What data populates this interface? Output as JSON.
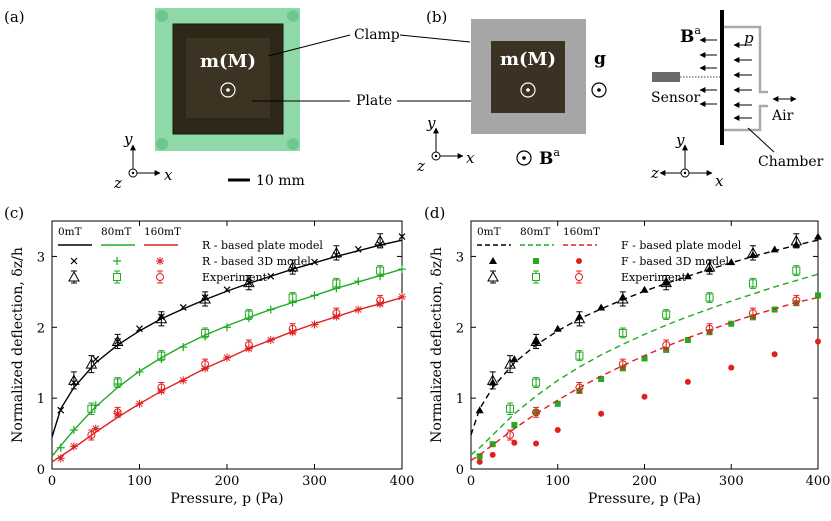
{
  "panels": {
    "a": "(a)",
    "b": "(b)",
    "c": "(c)",
    "d": "(d)"
  },
  "top": {
    "magnet_label": "m(M)",
    "clamp_label": "Clamp",
    "plate_label": "Plate",
    "gravity_label": "g",
    "field_label": "B",
    "field_sup": "a",
    "scalebar": "10 mm",
    "axis_x": "x",
    "axis_y": "y",
    "axis_z": "z",
    "sensor_label": "Sensor",
    "air_label": "Air",
    "chamber_label": "Chamber",
    "pressure_symbol": "p",
    "colors": {
      "clamp_green": "#8fd8a8",
      "plate_dark": "#3b3224",
      "clamp_gray": "#a6a6a6",
      "sensor_gray": "#6b6b6b"
    }
  },
  "chart_data": [
    {
      "type": "line",
      "panel": "c",
      "xlabel": "Pressure, p (Pa)",
      "ylabel": "Normalized deflection, δz/h",
      "xlim": [
        0,
        400
      ],
      "ylim": [
        0,
        3.5
      ],
      "xticks": [
        "0",
        "100",
        "200",
        "300",
        "400"
      ],
      "yticks": [
        "0",
        "1",
        "2",
        "3"
      ],
      "legend": {
        "headers": [
          "0mT",
          "80mT",
          "160mT"
        ],
        "rows": [
          {
            "label": "R - based plate model",
            "style": "solid"
          },
          {
            "label": "R - based 3D model",
            "style": "markers"
          },
          {
            "label": "Experiment",
            "style": "errorbars"
          }
        ]
      },
      "series": [
        {
          "name": "0mT",
          "color": "#000000",
          "model_x": [
            0,
            10,
            25,
            50,
            75,
            100,
            125,
            150,
            175,
            200,
            225,
            250,
            275,
            300,
            325,
            350,
            375,
            400
          ],
          "model_y": [
            0.45,
            0.85,
            1.15,
            1.5,
            1.75,
            1.95,
            2.12,
            2.26,
            2.39,
            2.51,
            2.62,
            2.72,
            2.82,
            2.91,
            3.0,
            3.08,
            3.16,
            3.23
          ],
          "d3_x": [
            10,
            25,
            50,
            75,
            100,
            125,
            150,
            175,
            200,
            225,
            250,
            275,
            300,
            325,
            350,
            375,
            400
          ],
          "d3_y": [
            0.83,
            1.22,
            1.55,
            1.8,
            1.98,
            2.15,
            2.28,
            2.42,
            2.53,
            2.63,
            2.72,
            2.82,
            2.92,
            3.02,
            3.1,
            3.17,
            3.28
          ],
          "exp_x": [
            25,
            45,
            75,
            125,
            175,
            225,
            275,
            325,
            375
          ],
          "exp_y": [
            1.25,
            1.48,
            1.8,
            2.12,
            2.4,
            2.63,
            2.85,
            3.05,
            3.22
          ],
          "exp_err": [
            0.12,
            0.12,
            0.1,
            0.1,
            0.1,
            0.1,
            0.1,
            0.1,
            0.1
          ]
        },
        {
          "name": "80mT",
          "color": "#22aa22",
          "model_x": [
            0,
            10,
            25,
            50,
            75,
            100,
            125,
            150,
            175,
            200,
            225,
            250,
            275,
            300,
            325,
            350,
            375,
            400
          ],
          "model_y": [
            0.18,
            0.33,
            0.55,
            0.88,
            1.15,
            1.38,
            1.57,
            1.74,
            1.89,
            2.02,
            2.14,
            2.25,
            2.35,
            2.45,
            2.55,
            2.64,
            2.73,
            2.82
          ],
          "d3_x": [
            10,
            25,
            50,
            75,
            100,
            125,
            150,
            175,
            200,
            225,
            250,
            275,
            300,
            325,
            350,
            375,
            400
          ],
          "d3_y": [
            0.3,
            0.55,
            0.9,
            1.2,
            1.37,
            1.55,
            1.72,
            1.87,
            2.0,
            2.13,
            2.25,
            2.35,
            2.45,
            2.55,
            2.65,
            2.72,
            2.82
          ],
          "exp_x": [
            45,
            75,
            125,
            175,
            225,
            275,
            325,
            375
          ],
          "exp_y": [
            0.85,
            1.22,
            1.6,
            1.92,
            2.18,
            2.42,
            2.62,
            2.8
          ],
          "exp_err": [
            0.08,
            0.07,
            0.07,
            0.07,
            0.07,
            0.07,
            0.07,
            0.07
          ]
        },
        {
          "name": "160mT",
          "color": "#e02020",
          "model_x": [
            0,
            10,
            25,
            50,
            75,
            100,
            125,
            150,
            175,
            200,
            225,
            250,
            275,
            300,
            325,
            350,
            375,
            400
          ],
          "model_y": [
            0.1,
            0.18,
            0.3,
            0.52,
            0.73,
            0.92,
            1.1,
            1.26,
            1.42,
            1.56,
            1.7,
            1.82,
            1.94,
            2.05,
            2.15,
            2.25,
            2.33,
            2.42
          ],
          "d3_x": [
            10,
            25,
            50,
            75,
            100,
            125,
            150,
            175,
            200,
            225,
            250,
            275,
            300,
            325,
            350,
            375,
            400
          ],
          "d3_y": [
            0.15,
            0.32,
            0.57,
            0.78,
            0.92,
            1.1,
            1.25,
            1.42,
            1.57,
            1.7,
            1.82,
            1.93,
            2.04,
            2.15,
            2.25,
            2.33,
            2.43
          ],
          "exp_x": [
            45,
            75,
            125,
            175,
            225,
            275,
            325,
            375
          ],
          "exp_y": [
            0.48,
            0.8,
            1.15,
            1.48,
            1.75,
            1.98,
            2.2,
            2.38
          ],
          "exp_err": [
            0.07,
            0.07,
            0.07,
            0.07,
            0.07,
            0.07,
            0.07,
            0.07
          ]
        }
      ]
    },
    {
      "type": "line",
      "panel": "d",
      "xlabel": "Pressure, p (Pa)",
      "ylabel": "Normalized deflection, δz/h",
      "xlim": [
        0,
        400
      ],
      "ylim": [
        0,
        3.5
      ],
      "xticks": [
        "0",
        "100",
        "200",
        "300",
        "400"
      ],
      "yticks": [
        "0",
        "1",
        "2",
        "3"
      ],
      "legend": {
        "headers": [
          "0mT",
          "80mT",
          "160mT"
        ],
        "rows": [
          {
            "label": "F - based plate model",
            "style": "dashed"
          },
          {
            "label": "F - based 3D model",
            "style": "markers"
          },
          {
            "label": "Experiment",
            "style": "errorbars"
          }
        ]
      },
      "series": [
        {
          "name": "0mT",
          "color": "#000000",
          "model_x": [
            0,
            10,
            25,
            50,
            75,
            100,
            125,
            150,
            175,
            200,
            225,
            250,
            275,
            300,
            325,
            350,
            375,
            400
          ],
          "model_y": [
            0.48,
            0.85,
            1.15,
            1.5,
            1.75,
            1.95,
            2.12,
            2.26,
            2.39,
            2.51,
            2.62,
            2.72,
            2.82,
            2.91,
            3.0,
            3.08,
            3.16,
            3.23
          ],
          "d3_x": [
            10,
            25,
            50,
            75,
            100,
            125,
            150,
            175,
            200,
            225,
            250,
            275,
            300,
            325,
            350,
            375,
            400
          ],
          "d3_y": [
            0.83,
            1.22,
            1.55,
            1.8,
            1.98,
            2.15,
            2.28,
            2.42,
            2.53,
            2.63,
            2.72,
            2.82,
            2.92,
            3.02,
            3.1,
            3.17,
            3.28
          ],
          "exp_x": [
            25,
            45,
            75,
            125,
            175,
            225,
            275,
            325,
            375
          ],
          "exp_y": [
            1.25,
            1.48,
            1.8,
            2.12,
            2.4,
            2.63,
            2.85,
            3.05,
            3.22
          ],
          "exp_err": [
            0.12,
            0.12,
            0.1,
            0.1,
            0.1,
            0.1,
            0.1,
            0.1,
            0.1
          ]
        },
        {
          "name": "80mT",
          "color": "#22aa22",
          "model_x": [
            0,
            10,
            25,
            50,
            75,
            100,
            125,
            150,
            175,
            200,
            225,
            250,
            275,
            300,
            325,
            350,
            375,
            400
          ],
          "model_y": [
            0.2,
            0.3,
            0.48,
            0.78,
            1.03,
            1.25,
            1.44,
            1.61,
            1.76,
            1.9,
            2.03,
            2.15,
            2.26,
            2.37,
            2.47,
            2.57,
            2.66,
            2.75
          ],
          "d3_x": [
            10,
            25,
            50,
            75,
            100,
            125,
            150,
            175,
            200,
            225,
            250,
            275,
            300,
            325,
            350,
            375,
            400
          ],
          "d3_y": [
            0.18,
            0.35,
            0.62,
            0.8,
            0.92,
            1.1,
            1.27,
            1.42,
            1.56,
            1.68,
            1.82,
            1.93,
            2.05,
            2.14,
            2.25,
            2.34,
            2.45
          ],
          "exp_x": [
            45,
            75,
            125,
            175,
            225,
            275,
            325,
            375
          ],
          "exp_y": [
            0.85,
            1.22,
            1.6,
            1.92,
            2.18,
            2.42,
            2.62,
            2.8
          ],
          "exp_err": [
            0.08,
            0.07,
            0.07,
            0.07,
            0.07,
            0.07,
            0.07,
            0.07
          ]
        },
        {
          "name": "160mT",
          "color": "#e02020",
          "model_x": [
            0,
            10,
            25,
            50,
            75,
            100,
            125,
            150,
            175,
            200,
            225,
            250,
            275,
            300,
            325,
            350,
            375,
            400
          ],
          "model_y": [
            0.12,
            0.2,
            0.34,
            0.57,
            0.78,
            0.97,
            1.15,
            1.31,
            1.46,
            1.6,
            1.73,
            1.85,
            1.96,
            2.07,
            2.17,
            2.26,
            2.35,
            2.42
          ],
          "d3_x": [
            10,
            25,
            50,
            75,
            100,
            150,
            200,
            250,
            300,
            350,
            400
          ],
          "d3_y": [
            0.1,
            0.2,
            0.37,
            0.36,
            0.55,
            0.78,
            1.02,
            1.23,
            1.43,
            1.62,
            1.8
          ],
          "exp_x": [
            45,
            75,
            125,
            175,
            225,
            275,
            325,
            375
          ],
          "exp_y": [
            0.48,
            0.8,
            1.15,
            1.48,
            1.75,
            1.98,
            2.2,
            2.38
          ],
          "exp_err": [
            0.07,
            0.07,
            0.07,
            0.07,
            0.07,
            0.07,
            0.07,
            0.07
          ]
        }
      ]
    }
  ]
}
